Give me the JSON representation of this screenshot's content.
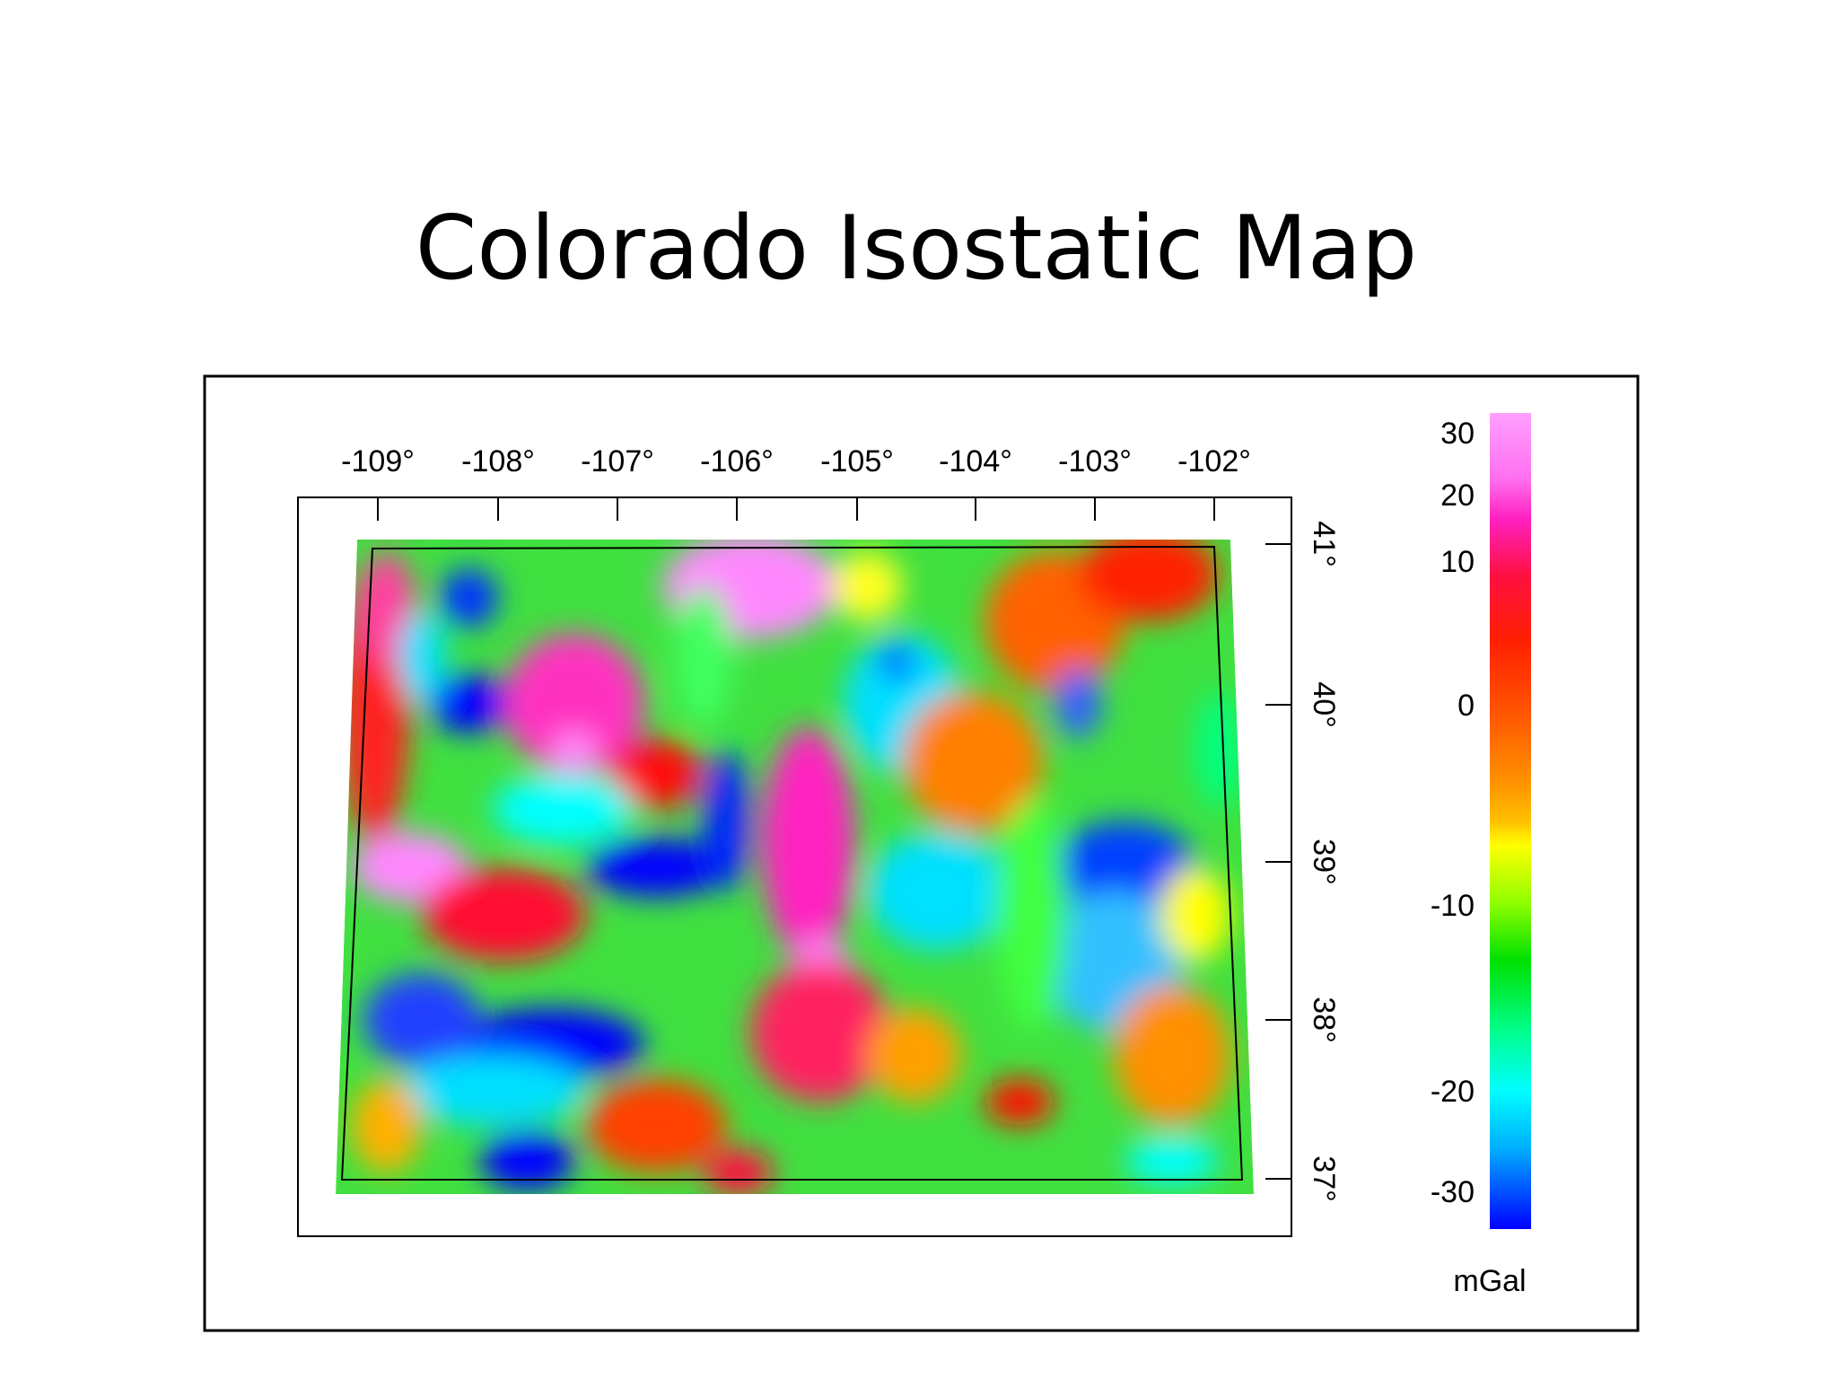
{
  "header": {
    "title": "Colorado Isostatic Map"
  },
  "map": {
    "longitude_labels": [
      "-109°",
      "-108°",
      "-107°",
      "-106°",
      "-105°",
      "-104°",
      "-103°",
      "-102°"
    ],
    "latitude_labels": [
      "41°",
      "40°",
      "39°",
      "38°",
      "37°"
    ]
  },
  "colorbar": {
    "labels": [
      "30",
      "20",
      "10",
      "0",
      "-10",
      "-20",
      "-30"
    ],
    "unit": "mGal"
  }
}
